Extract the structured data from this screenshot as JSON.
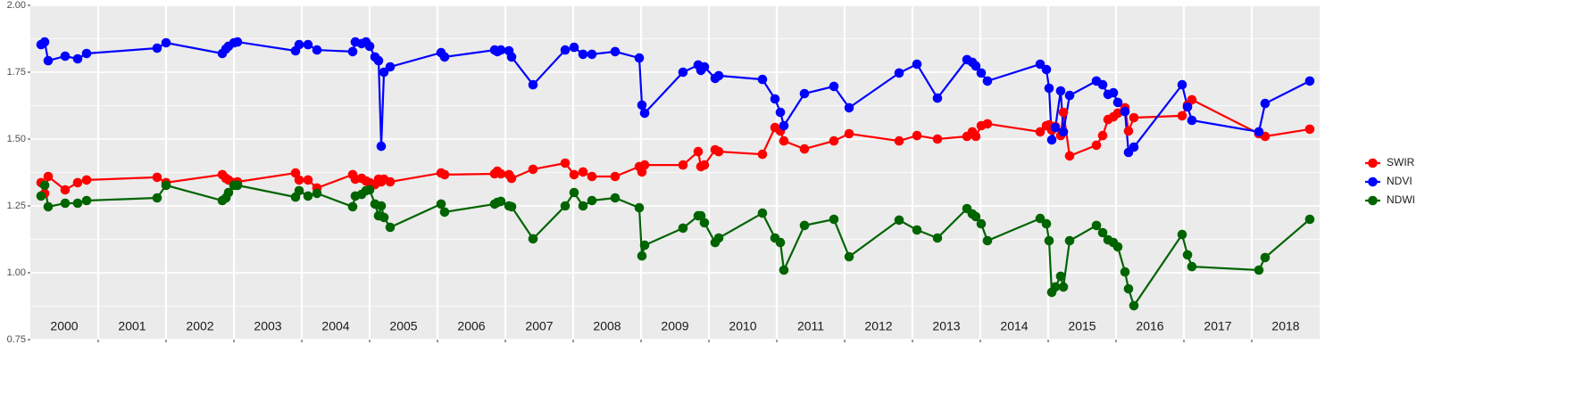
{
  "chart_data": {
    "type": "line",
    "x": [
      2000.158,
      2000.211,
      2000.263,
      2000.513,
      2000.697,
      2000.829,
      2001.868,
      2002.0,
      2002.829,
      2002.882,
      2002.921,
      2003.0,
      2003.053,
      2003.908,
      2003.961,
      2004.092,
      2004.224,
      2004.75,
      2004.789,
      2004.882,
      2004.947,
      2005.0,
      2005.079,
      2005.132,
      2005.171,
      2005.211,
      2005.303,
      2006.053,
      2006.105,
      2006.842,
      2006.882,
      2006.934,
      2007.053,
      2007.092,
      2007.408,
      2007.882,
      2008.013,
      2008.145,
      2008.276,
      2008.618,
      2008.974,
      2009.013,
      2009.053,
      2009.618,
      2009.842,
      2009.882,
      2009.934,
      2010.092,
      2010.145,
      2010.789,
      2010.974,
      2011.053,
      2011.105,
      2011.408,
      2011.842,
      2012.066,
      2012.803,
      2013.066,
      2013.368,
      2013.803,
      2013.882,
      2013.934,
      2014.013,
      2014.105,
      2014.882,
      2014.974,
      2015.013,
      2015.053,
      2015.105,
      2015.184,
      2015.224,
      2015.316,
      2015.711,
      2015.803,
      2015.882,
      2015.961,
      2016.026,
      2016.132,
      2016.184,
      2016.263,
      2016.974,
      2017.053,
      2017.118,
      2018.105,
      2018.197,
      2018.855
    ],
    "series": [
      {
        "name": "SWIR",
        "color": "#ff0000",
        "values": [
          1.337,
          1.297,
          1.36,
          1.31,
          1.337,
          1.347,
          1.357,
          1.337,
          1.367,
          1.353,
          1.347,
          1.337,
          1.34,
          1.373,
          1.347,
          1.347,
          1.317,
          1.367,
          1.35,
          1.353,
          1.343,
          1.337,
          1.33,
          1.35,
          1.34,
          1.35,
          1.34,
          1.373,
          1.367,
          1.37,
          1.38,
          1.37,
          1.367,
          1.353,
          1.387,
          1.41,
          1.367,
          1.377,
          1.36,
          1.36,
          1.397,
          1.377,
          1.403,
          1.403,
          1.453,
          1.397,
          1.403,
          1.46,
          1.453,
          1.443,
          1.543,
          1.53,
          1.493,
          1.463,
          1.493,
          1.52,
          1.493,
          1.513,
          1.5,
          1.51,
          1.527,
          1.51,
          1.55,
          1.557,
          1.527,
          1.55,
          1.553,
          1.533,
          1.547,
          1.513,
          1.6,
          1.437,
          1.477,
          1.513,
          1.573,
          1.583,
          1.597,
          1.617,
          1.53,
          1.58,
          1.587,
          1.627,
          1.647,
          1.52,
          1.51,
          1.537
        ]
      },
      {
        "name": "NDVI",
        "color": "#0000ff",
        "values": [
          1.853,
          1.863,
          1.793,
          1.81,
          1.8,
          1.82,
          1.84,
          1.86,
          1.82,
          1.837,
          1.847,
          1.86,
          1.863,
          1.83,
          1.853,
          1.853,
          1.833,
          1.827,
          1.863,
          1.857,
          1.863,
          1.847,
          1.807,
          1.793,
          1.473,
          1.75,
          1.77,
          1.823,
          1.807,
          1.833,
          1.827,
          1.833,
          1.83,
          1.807,
          1.703,
          1.833,
          1.843,
          1.817,
          1.817,
          1.827,
          1.803,
          1.627,
          1.597,
          1.75,
          1.777,
          1.757,
          1.77,
          1.727,
          1.737,
          1.723,
          1.65,
          1.6,
          1.55,
          1.67,
          1.697,
          1.617,
          1.747,
          1.78,
          1.653,
          1.797,
          1.787,
          1.773,
          1.747,
          1.717,
          1.78,
          1.76,
          1.69,
          1.497,
          1.543,
          1.68,
          1.527,
          1.663,
          1.717,
          1.703,
          1.667,
          1.673,
          1.637,
          1.603,
          1.45,
          1.47,
          1.703,
          1.62,
          1.57,
          1.527,
          1.633,
          1.717
        ]
      },
      {
        "name": "NDWI",
        "color": "#006400",
        "values": [
          1.287,
          1.327,
          1.247,
          1.26,
          1.26,
          1.27,
          1.28,
          1.327,
          1.27,
          1.28,
          1.3,
          1.327,
          1.327,
          1.283,
          1.307,
          1.287,
          1.297,
          1.247,
          1.287,
          1.293,
          1.307,
          1.31,
          1.257,
          1.213,
          1.25,
          1.207,
          1.17,
          1.257,
          1.227,
          1.257,
          1.263,
          1.267,
          1.25,
          1.247,
          1.127,
          1.25,
          1.3,
          1.25,
          1.27,
          1.28,
          1.243,
          1.063,
          1.103,
          1.167,
          1.213,
          1.213,
          1.187,
          1.113,
          1.13,
          1.223,
          1.13,
          1.113,
          1.01,
          1.177,
          1.2,
          1.06,
          1.197,
          1.16,
          1.13,
          1.24,
          1.22,
          1.21,
          1.183,
          1.12,
          1.203,
          1.183,
          1.12,
          0.927,
          0.947,
          0.987,
          0.947,
          1.12,
          1.177,
          1.15,
          1.123,
          1.113,
          1.097,
          1.003,
          0.94,
          0.877,
          1.143,
          1.067,
          1.023,
          1.01,
          1.057,
          1.2
        ]
      }
    ],
    "xlim": [
      2000.0,
      2019.0
    ],
    "xgrid_lines": [
      2001,
      2002,
      2003,
      2004,
      2005,
      2006,
      2007,
      2008,
      2009,
      2010,
      2011,
      2012,
      2013,
      2014,
      2015,
      2016,
      2017,
      2018
    ],
    "year_labels": [
      {
        "value": 2000.5,
        "label": "2000"
      },
      {
        "value": 2001.5,
        "label": "2001"
      },
      {
        "value": 2002.5,
        "label": "2002"
      },
      {
        "value": 2003.5,
        "label": "2003"
      },
      {
        "value": 2004.5,
        "label": "2004"
      },
      {
        "value": 2005.5,
        "label": "2005"
      },
      {
        "value": 2006.5,
        "label": "2006"
      },
      {
        "value": 2007.5,
        "label": "2007"
      },
      {
        "value": 2008.5,
        "label": "2008"
      },
      {
        "value": 2009.5,
        "label": "2009"
      },
      {
        "value": 2010.5,
        "label": "2010"
      },
      {
        "value": 2011.5,
        "label": "2011"
      },
      {
        "value": 2012.5,
        "label": "2012"
      },
      {
        "value": 2013.5,
        "label": "2013"
      },
      {
        "value": 2014.5,
        "label": "2014"
      },
      {
        "value": 2015.5,
        "label": "2015"
      },
      {
        "value": 2016.5,
        "label": "2016"
      },
      {
        "value": 2017.5,
        "label": "2017"
      },
      {
        "value": 2018.5,
        "label": "2018"
      }
    ],
    "ylim": [
      0.75,
      2.0
    ],
    "yticks": [
      {
        "value": 0.75,
        "label": "0.75"
      },
      {
        "value": 1.0,
        "label": "1.00"
      },
      1.25,
      {
        "value": 1.5,
        "label": "1.50"
      },
      1.75,
      {
        "value": 2.0,
        "label": "2.00"
      }
    ],
    "grid": true,
    "legend": "right"
  }
}
